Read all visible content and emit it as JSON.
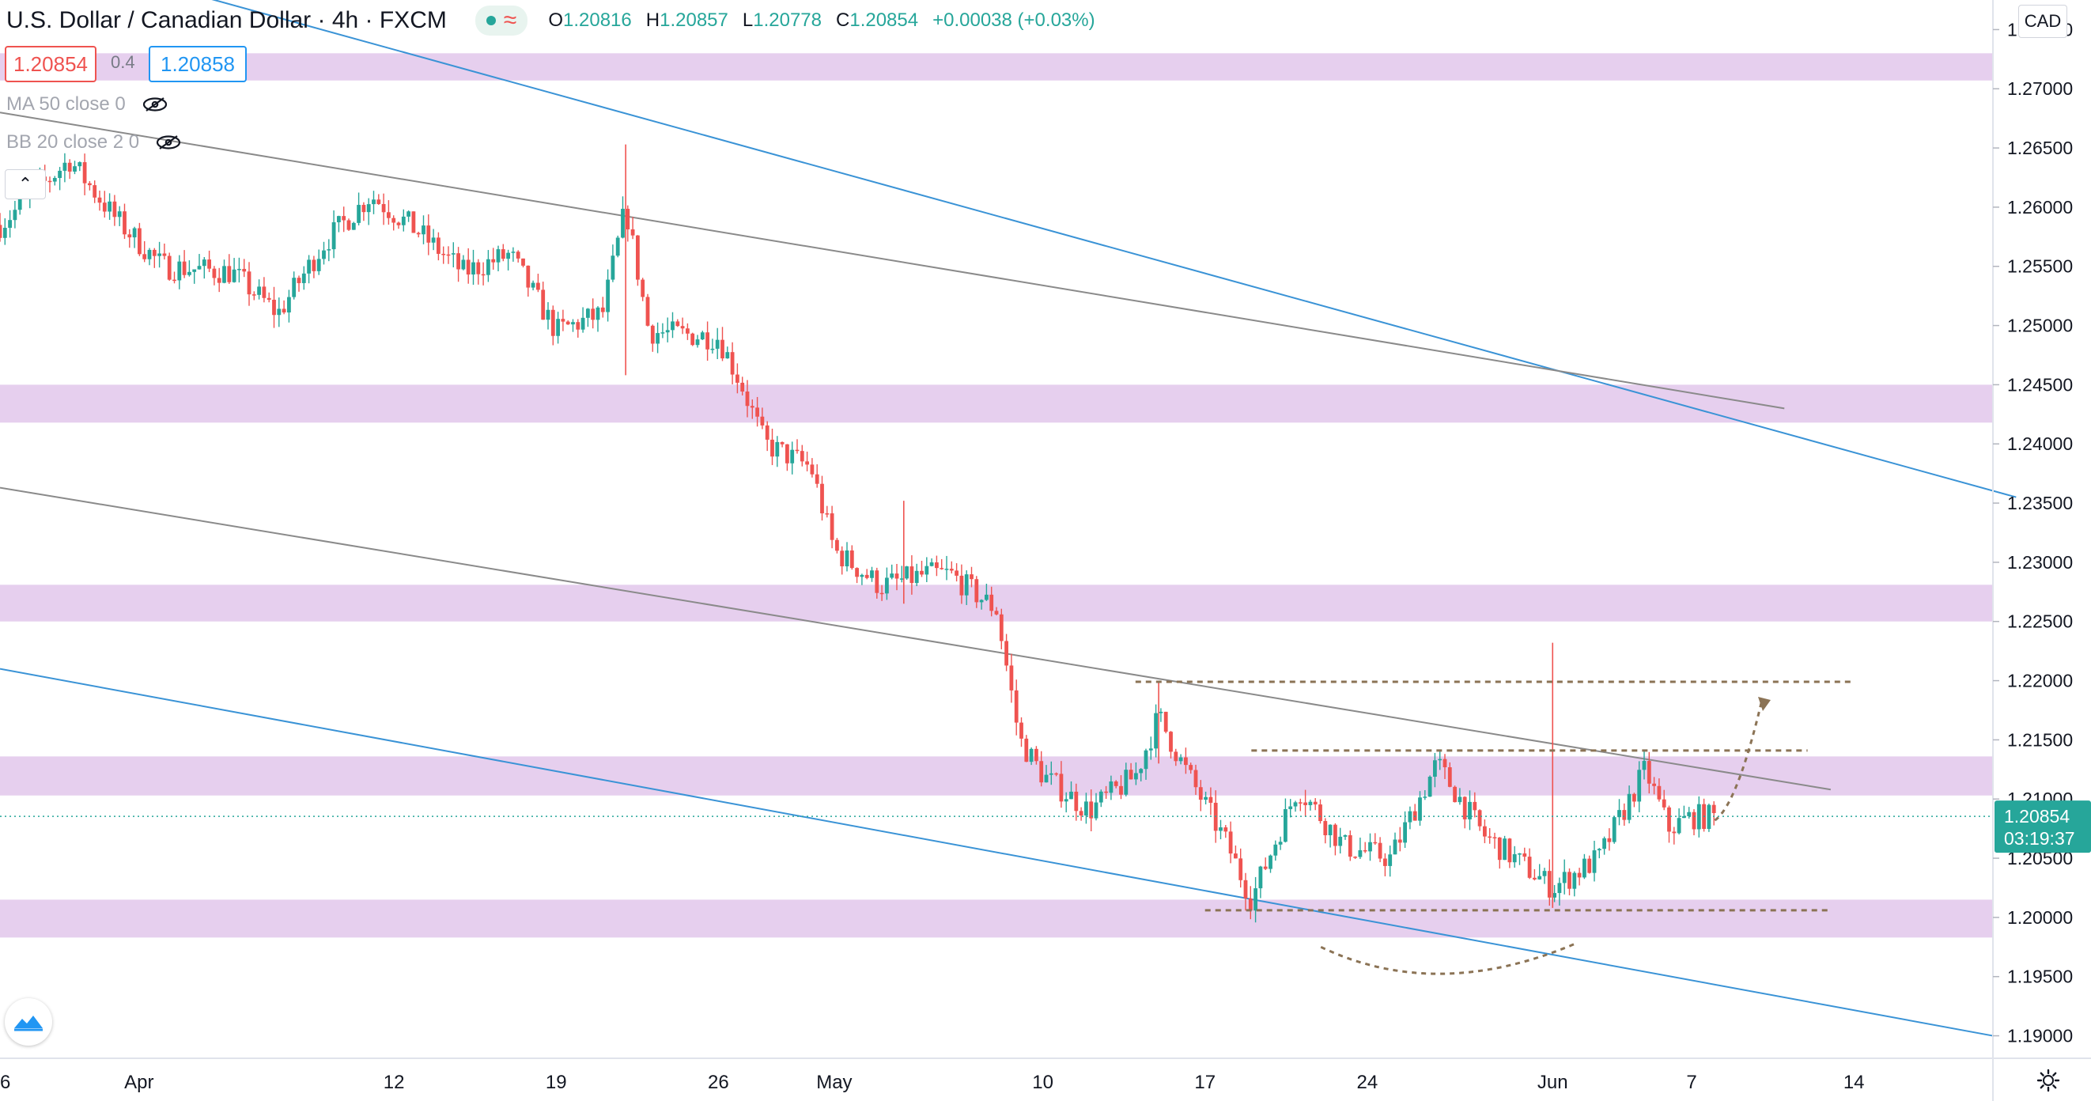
{
  "header": {
    "title": "U.S. Dollar / Canadian Dollar · 4h · FXCM",
    "open_label": "O",
    "open": "1.20816",
    "high_label": "H",
    "high": "1.20857",
    "low_label": "L",
    "low": "1.20778",
    "close_label": "C",
    "close": "1.20854",
    "change": "+0.00038 (+0.03%)"
  },
  "quote": {
    "bid": "1.20854",
    "spread": "0.4",
    "ask": "1.20858"
  },
  "indicators": [
    {
      "label": "MA 50 close 0",
      "icon": "eye-crossed-icon"
    },
    {
      "label": "BB 20 close 2 0",
      "icon": "eye-crossed-icon"
    }
  ],
  "currency_button": "CAD",
  "last_price": {
    "value": "1.20854",
    "countdown": "03:19:37",
    "color": "#26a69a"
  },
  "colors": {
    "up": "#26a69a",
    "down": "#ef5350",
    "zone": "#e6cfee",
    "channel_blue": "#3a93d6",
    "channel_gray": "#8a8a8a",
    "projection": "#8b7355",
    "axis_text": "#131722",
    "quote_bid": "#ef5350",
    "quote_ask": "#2196f3"
  },
  "chart_data": {
    "type": "candlestick",
    "title": "U.S. Dollar / Canadian Dollar, 4h, FXCM",
    "y_ticks": [
      "1.27500",
      "1.27000",
      "1.26500",
      "1.26000",
      "1.25500",
      "1.25000",
      "1.24500",
      "1.24000",
      "1.23500",
      "1.23000",
      "1.22500",
      "1.22000",
      "1.21500",
      "1.21000",
      "1.20500",
      "1.20000",
      "1.19500",
      "1.19000"
    ],
    "x_ticks": [
      "6",
      "Apr",
      "12",
      "19",
      "26",
      "May",
      "10",
      "17",
      "24",
      "Jun",
      "7",
      "14"
    ],
    "x_range": [
      "2021-03-26",
      "2021-06-20"
    ],
    "ylim": [
      1.1885,
      1.2775
    ],
    "price_path": [
      [
        "2021-03-26",
        1.2585
      ],
      [
        "2021-03-29",
        1.264
      ],
      [
        "2021-03-31",
        1.259
      ],
      [
        "2021-04-02",
        1.255
      ],
      [
        "2021-04-05",
        1.2545
      ],
      [
        "2021-04-07",
        1.251
      ],
      [
        "2021-04-09",
        1.257
      ],
      [
        "2021-04-11",
        1.261
      ],
      [
        "2021-04-13",
        1.258
      ],
      [
        "2021-04-15",
        1.2545
      ],
      [
        "2021-04-17",
        1.256
      ],
      [
        "2021-04-19",
        1.2495
      ],
      [
        "2021-04-21",
        1.251
      ],
      [
        "2021-04-22",
        1.26
      ],
      [
        "2021-04-23",
        1.2495
      ],
      [
        "2021-04-26",
        1.249
      ],
      [
        "2021-04-27",
        1.245
      ],
      [
        "2021-04-28",
        1.24
      ],
      [
        "2021-04-30",
        1.238
      ],
      [
        "2021-05-01",
        1.231
      ],
      [
        "2021-05-03",
        1.228
      ],
      [
        "2021-05-05",
        1.229
      ],
      [
        "2021-05-06",
        1.229
      ],
      [
        "2021-05-08",
        1.226
      ],
      [
        "2021-05-09",
        1.215
      ],
      [
        "2021-05-10",
        1.212
      ],
      [
        "2021-05-12",
        1.209
      ],
      [
        "2021-05-14",
        1.212
      ],
      [
        "2021-05-15",
        1.217
      ],
      [
        "2021-05-16",
        1.213
      ],
      [
        "2021-05-18",
        1.206
      ],
      [
        "2021-05-19",
        1.2015
      ],
      [
        "2021-05-21",
        1.211
      ],
      [
        "2021-05-23",
        1.206
      ],
      [
        "2021-05-25",
        1.205
      ],
      [
        "2021-05-27",
        1.213
      ],
      [
        "2021-05-29",
        1.207
      ],
      [
        "2021-06-01",
        1.2025
      ],
      [
        "2021-06-03",
        1.205
      ],
      [
        "2021-06-05",
        1.2125
      ],
      [
        "2021-06-06",
        1.2075
      ],
      [
        "2021-06-07",
        1.2085
      ]
    ],
    "spikes": [
      [
        "2021-04-22",
        1.2653,
        1.2458
      ],
      [
        "2021-05-04",
        1.2352,
        1.2265
      ],
      [
        "2021-05-15",
        1.22,
        1.213
      ],
      [
        "2021-06-01",
        1.2232,
        1.2008
      ]
    ],
    "zones": [
      [
        1.2707,
        1.273
      ],
      [
        1.2418,
        1.245
      ],
      [
        1.225,
        1.2281
      ],
      [
        1.2103,
        1.2136
      ],
      [
        1.1983,
        1.2015
      ]
    ],
    "channel_lines": [
      {
        "color": "blue",
        "from": [
          "2021-03-26",
          1.2825
        ],
        "to": [
          "2021-06-21",
          1.2355
        ]
      },
      {
        "color": "blue",
        "from": [
          "2021-03-26",
          1.221
        ],
        "to": [
          "2021-06-20",
          1.19
        ]
      },
      {
        "color": "gray",
        "from": [
          "2021-03-26",
          1.268
        ],
        "to": [
          "2021-06-11",
          1.243
        ]
      },
      {
        "color": "gray",
        "from": [
          "2021-03-26",
          1.2363
        ],
        "to": [
          "2021-06-13",
          1.2108
        ]
      }
    ],
    "levels": [
      {
        "price": 1.2199,
        "from": "2021-05-14",
        "to": "2021-06-14",
        "style": "dashed"
      },
      {
        "price": 1.2141,
        "from": "2021-05-19",
        "to": "2021-06-12",
        "style": "dashed"
      },
      {
        "price": 1.2006,
        "from": "2021-05-17",
        "to": "2021-06-13",
        "style": "dashed"
      }
    ],
    "projection_arrow": {
      "from": [
        "2021-06-08",
        1.2082
      ],
      "to": [
        "2021-06-10",
        1.2181
      ]
    },
    "rounded_bottom": {
      "from": [
        "2021-05-22",
        1.1975
      ],
      "mid": [
        "2021-05-27",
        1.1955
      ],
      "to": [
        "2021-06-02",
        1.1978
      ]
    },
    "last": 1.20854
  }
}
